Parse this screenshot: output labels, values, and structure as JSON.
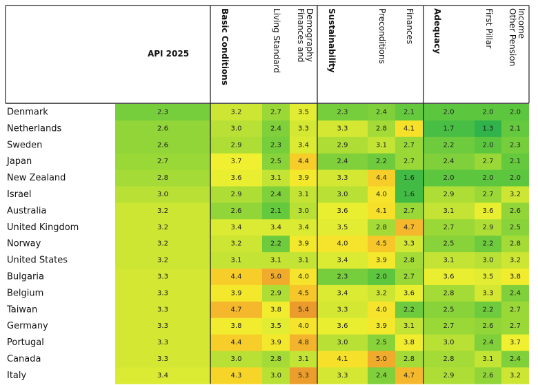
{
  "chart_data": {
    "type": "heatmap",
    "title": "API 2025",
    "columns": [
      {
        "label": "API 2025",
        "bold": true
      },
      {
        "label": "Basic Conditions",
        "bold": true
      },
      {
        "label": "Living Standard",
        "bold": false
      },
      {
        "label": "Finances and Demography",
        "lines": [
          "Finances and",
          "Demography"
        ],
        "bold": false
      },
      {
        "label": "Sustainability",
        "bold": true
      },
      {
        "label": "Preconditions",
        "bold": false
      },
      {
        "label": "Finances",
        "bold": false
      },
      {
        "label": "Adequacy",
        "bold": true
      },
      {
        "label": "First Pillar",
        "bold": false
      },
      {
        "label": "Other Pension Income",
        "lines": [
          "Other Pension",
          "Income"
        ],
        "bold": false
      }
    ],
    "rows": [
      {
        "country": "Denmark",
        "values": [
          2.3,
          3.2,
          2.7,
          3.5,
          2.3,
          2.4,
          2.1,
          2.0,
          2.0,
          2.0
        ]
      },
      {
        "country": "Netherlands",
        "values": [
          2.6,
          3.0,
          2.4,
          3.3,
          3.3,
          2.8,
          4.1,
          1.7,
          1.3,
          2.1
        ]
      },
      {
        "country": "Sweden",
        "values": [
          2.6,
          2.9,
          2.3,
          3.4,
          2.9,
          3.1,
          2.7,
          2.2,
          2.0,
          2.3
        ]
      },
      {
        "country": "Japan",
        "values": [
          2.7,
          3.7,
          2.5,
          4.4,
          2.4,
          2.2,
          2.7,
          2.4,
          2.7,
          2.1
        ]
      },
      {
        "country": "New Zealand",
        "values": [
          2.8,
          3.6,
          3.1,
          3.9,
          3.3,
          4.4,
          1.6,
          2.0,
          2.0,
          2.0
        ]
      },
      {
        "country": "Israel",
        "values": [
          3.0,
          2.9,
          2.4,
          3.1,
          3.0,
          4.0,
          1.6,
          2.9,
          2.7,
          3.2
        ]
      },
      {
        "country": "Australia",
        "values": [
          3.2,
          2.6,
          2.1,
          3.0,
          3.6,
          4.1,
          2.7,
          3.1,
          3.6,
          2.6
        ]
      },
      {
        "country": "United Kingdom",
        "values": [
          3.2,
          3.4,
          3.4,
          3.4,
          3.5,
          2.8,
          4.7,
          2.7,
          2.9,
          2.5
        ]
      },
      {
        "country": "Norway",
        "values": [
          3.2,
          3.2,
          2.2,
          3.9,
          4.0,
          4.5,
          3.3,
          2.5,
          2.2,
          2.8
        ]
      },
      {
        "country": "United States",
        "values": [
          3.2,
          3.1,
          3.1,
          3.1,
          3.4,
          3.9,
          2.8,
          3.1,
          3.0,
          3.2
        ]
      },
      {
        "country": "Bulgaria",
        "values": [
          3.3,
          4.4,
          5.0,
          4.0,
          2.3,
          2.0,
          2.7,
          3.6,
          3.5,
          3.8
        ]
      },
      {
        "country": "Belgium",
        "values": [
          3.3,
          3.9,
          2.9,
          4.5,
          3.4,
          3.2,
          3.6,
          2.8,
          3.3,
          2.4
        ]
      },
      {
        "country": "Taiwan",
        "values": [
          3.3,
          4.7,
          3.8,
          5.4,
          3.3,
          4.0,
          2.2,
          2.5,
          2.2,
          2.7
        ]
      },
      {
        "country": "Germany",
        "values": [
          3.3,
          3.8,
          3.5,
          4.0,
          3.6,
          3.9,
          3.1,
          2.7,
          2.6,
          2.7
        ]
      },
      {
        "country": "Portugal",
        "values": [
          3.3,
          4.4,
          3.9,
          4.8,
          3.0,
          2.5,
          3.8,
          3.0,
          2.4,
          3.7
        ]
      },
      {
        "country": "Canada",
        "values": [
          3.3,
          3.0,
          2.8,
          3.1,
          4.1,
          5.0,
          2.8,
          2.8,
          3.1,
          2.4
        ]
      },
      {
        "country": "Italy",
        "values": [
          3.4,
          4.3,
          3.0,
          5.3,
          3.3,
          2.4,
          4.7,
          2.9,
          2.6,
          3.2
        ]
      }
    ],
    "color_scale": {
      "stops": [
        {
          "value": 1.3,
          "color": "#2fb34a"
        },
        {
          "value": 2.0,
          "color": "#5cc63f"
        },
        {
          "value": 2.7,
          "color": "#9ad837"
        },
        {
          "value": 3.2,
          "color": "#cde634"
        },
        {
          "value": 3.7,
          "color": "#f0f030"
        },
        {
          "value": 4.2,
          "color": "#f8dc27"
        },
        {
          "value": 4.7,
          "color": "#f5b72c"
        },
        {
          "value": 5.4,
          "color": "#eb9a2c"
        }
      ]
    }
  }
}
